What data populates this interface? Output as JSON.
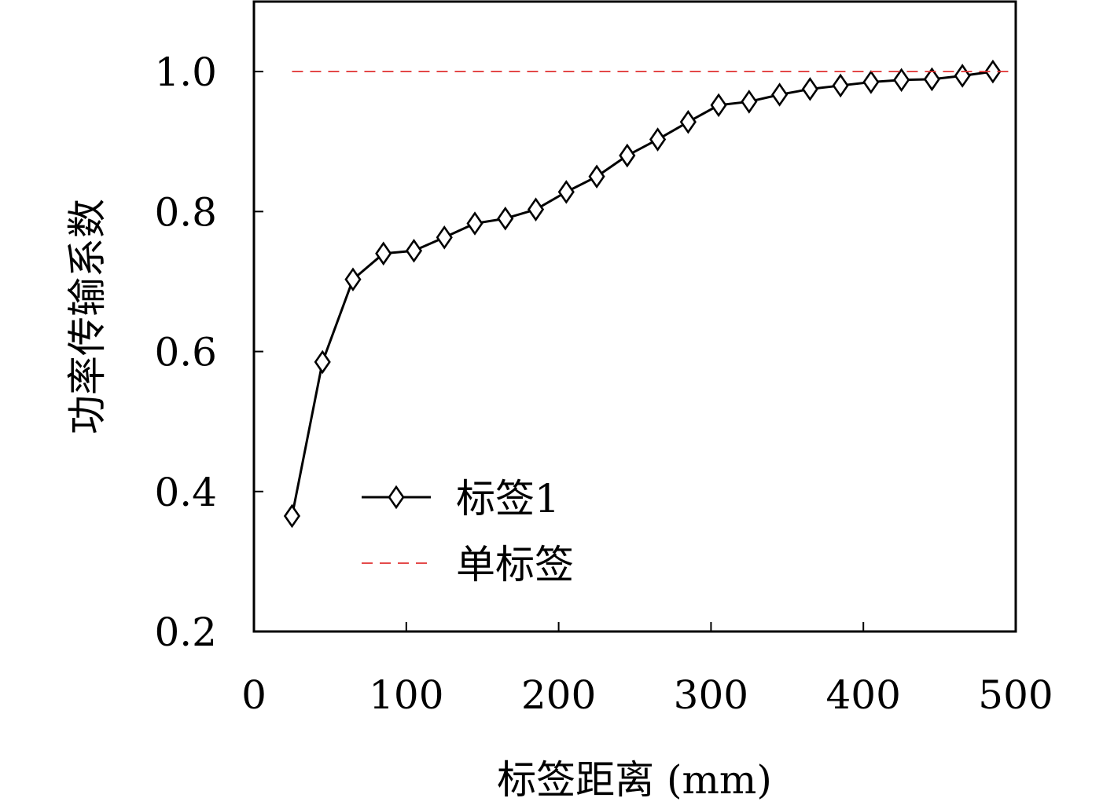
{
  "chart_data": {
    "type": "line",
    "xlabel": "标签距离 (mm)",
    "ylabel": "功率传输系数",
    "xlim": [
      0,
      500
    ],
    "ylim": [
      0.2,
      1.1
    ],
    "xticks": [
      0,
      100,
      200,
      300,
      400,
      500
    ],
    "xtick_labels": [
      "0",
      "100",
      "200",
      "300",
      "400",
      "500"
    ],
    "yticks": [
      0.2,
      0.4,
      0.6,
      0.8,
      1.0
    ],
    "ytick_labels": [
      "0.2",
      "0.4",
      "0.6",
      "0.8",
      "1.0"
    ],
    "grid": false,
    "legend_position": "lower-left",
    "series": [
      {
        "name": "标签1",
        "color": "#000000",
        "marker": "diamond",
        "style": "solid",
        "x": [
          25,
          45,
          65,
          85,
          105,
          125,
          145,
          165,
          185,
          205,
          225,
          245,
          265,
          285,
          305,
          325,
          345,
          365,
          385,
          405,
          425,
          445,
          465,
          485
        ],
        "y": [
          0.365,
          0.585,
          0.703,
          0.74,
          0.744,
          0.763,
          0.783,
          0.79,
          0.803,
          0.828,
          0.85,
          0.88,
          0.903,
          0.928,
          0.952,
          0.957,
          0.967,
          0.975,
          0.98,
          0.985,
          0.988,
          0.989,
          0.994,
          1.0
        ]
      },
      {
        "name": "单标签",
        "color": "#e03030",
        "style": "dashed",
        "x": [
          25,
          500
        ],
        "y": [
          1.0,
          1.0
        ]
      }
    ]
  }
}
